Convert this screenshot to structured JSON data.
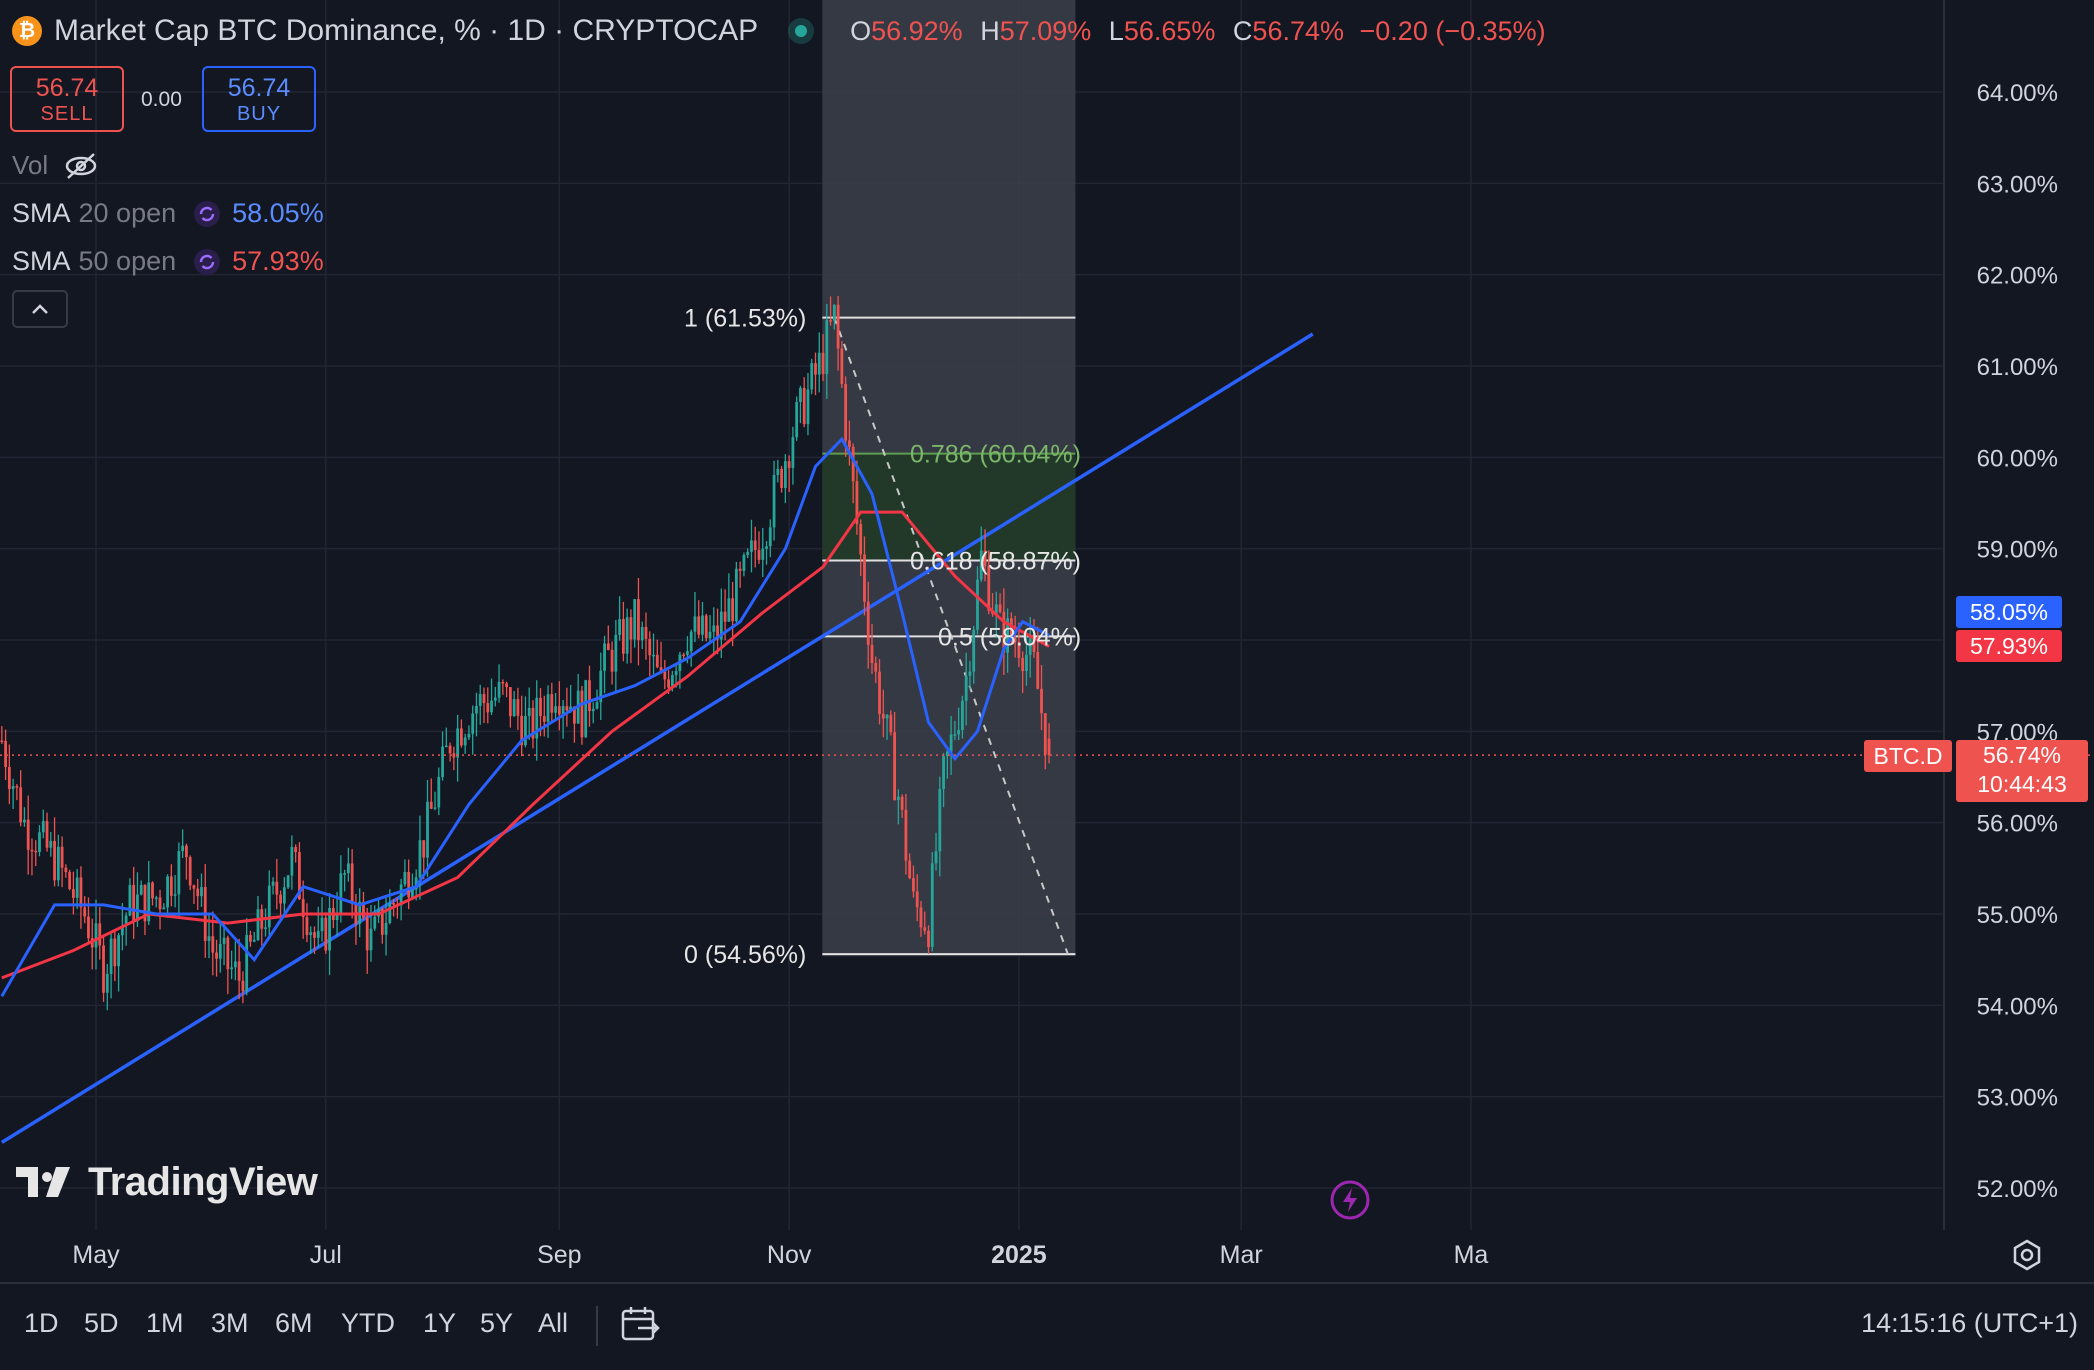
{
  "header": {
    "symbol_icon": "bitcoin-icon",
    "title": "Market Cap BTC Dominance, % · 1D · CRYPTOCAP",
    "status_icon": "market-status-dot-icon",
    "o_label": "O",
    "o_value": "56.92%",
    "h_label": "H",
    "h_value": "57.09%",
    "l_label": "L",
    "l_value": "56.65%",
    "c_label": "C",
    "c_value": "56.74%",
    "change": "−0.20 (−0.35%)"
  },
  "trade": {
    "sell_price": "56.74",
    "sell_label": "SELL",
    "spread": "0.00",
    "buy_price": "56.74",
    "buy_label": "BUY"
  },
  "indicators": {
    "vol_label": "Vol",
    "vol_icon": "eye-off-icon",
    "sma20_name": "SMA",
    "sma20_params": "20 open",
    "sma20_value": "58.05%",
    "sma50_name": "SMA",
    "sma50_params": "50 open",
    "sma50_value": "57.93%",
    "collapse_icon": "chevron-up-icon"
  },
  "price_axis": {
    "ticks": [
      "64.00%",
      "63.00%",
      "62.00%",
      "61.00%",
      "60.00%",
      "59.00%",
      "57.00%",
      "56.00%",
      "55.00%",
      "54.00%",
      "53.00%",
      "52.00%"
    ],
    "badge_sma20": "58.05%",
    "badge_sma50": "57.93%",
    "badge_symbol": "BTC.D",
    "badge_price": "56.74%",
    "badge_countdown": "10:44:43"
  },
  "time_axis": {
    "labels": [
      "May",
      "Jul",
      "Sep",
      "Nov",
      "2025",
      "Mar",
      "Ma"
    ],
    "settings_icon": "gear-icon"
  },
  "fib": {
    "levels": [
      "1 (61.53%)",
      "0.786 (60.04%)",
      "0.618 (58.87%)",
      "0.5 (58.04%)",
      "0 (54.56%)"
    ]
  },
  "branding": {
    "logo_text": "TradingView",
    "lightning_icon": "lightning-icon"
  },
  "toolbar": {
    "ranges": [
      "1D",
      "5D",
      "1M",
      "3M",
      "6M",
      "YTD",
      "1Y",
      "5Y",
      "All"
    ],
    "compare_icon": "calendar-range-icon",
    "clock": "14:15:16 (UTC+1)"
  },
  "colors": {
    "background": "#131722",
    "up": "#26a69a",
    "down": "#ef5350",
    "sma20": "#2962ff",
    "sma50": "#f23645",
    "trendline": "#2962ff",
    "fib_zone": "#3c3f4a",
    "fib_green": "#1e3a26"
  },
  "chart_data": {
    "type": "candlestick",
    "title": "Market Cap BTC Dominance, % · 1D · CRYPTOCAP",
    "ylabel": "",
    "y_scale": "percent",
    "ylim": [
      51.6,
      64.4
    ],
    "x_range": [
      "2024-04-06",
      "2025-05-05"
    ],
    "last_close": 56.74,
    "ohlc_last": {
      "open": 56.92,
      "high": 57.09,
      "low": 56.65,
      "close": 56.74
    },
    "series": [
      {
        "name": "BTC.D",
        "type": "close",
        "points": [
          [
            "2024-04-06",
            56.9
          ],
          [
            "2024-04-12",
            56.0
          ],
          [
            "2024-04-20",
            55.6
          ],
          [
            "2024-04-28",
            55.0
          ],
          [
            "2024-05-03",
            54.4
          ],
          [
            "2024-05-10",
            55.1
          ],
          [
            "2024-05-18",
            55.2
          ],
          [
            "2024-05-25",
            55.7
          ],
          [
            "2024-06-01",
            54.6
          ],
          [
            "2024-06-08",
            54.3
          ],
          [
            "2024-06-15",
            55.0
          ],
          [
            "2024-06-22",
            55.6
          ],
          [
            "2024-06-29",
            54.6
          ],
          [
            "2024-07-06",
            55.4
          ],
          [
            "2024-07-13",
            54.7
          ],
          [
            "2024-07-20",
            55.2
          ],
          [
            "2024-07-27",
            55.8
          ],
          [
            "2024-08-03",
            56.9
          ],
          [
            "2024-08-10",
            57.3
          ],
          [
            "2024-08-17",
            57.4
          ],
          [
            "2024-08-24",
            57.0
          ],
          [
            "2024-08-31",
            57.5
          ],
          [
            "2024-09-07",
            57.2
          ],
          [
            "2024-09-14",
            57.8
          ],
          [
            "2024-09-21",
            58.2
          ],
          [
            "2024-09-28",
            57.5
          ],
          [
            "2024-10-05",
            58.1
          ],
          [
            "2024-10-12",
            58.0
          ],
          [
            "2024-10-19",
            58.6
          ],
          [
            "2024-10-26",
            59.3
          ],
          [
            "2024-11-02",
            60.3
          ],
          [
            "2024-11-09",
            61.0
          ],
          [
            "2024-11-13",
            61.53
          ],
          [
            "2024-11-17",
            60.0
          ],
          [
            "2024-11-23",
            57.8
          ],
          [
            "2024-11-30",
            56.3
          ],
          [
            "2024-12-04",
            55.1
          ],
          [
            "2024-12-08",
            54.9
          ],
          [
            "2024-12-12",
            56.5
          ],
          [
            "2024-12-18",
            57.6
          ],
          [
            "2024-12-22",
            58.9
          ],
          [
            "2024-12-27",
            58.1
          ],
          [
            "2025-01-01",
            58.0
          ],
          [
            "2025-01-05",
            57.7
          ],
          [
            "2025-01-09",
            56.74
          ]
        ]
      },
      {
        "name": "SMA 20 open",
        "type": "line",
        "points": [
          [
            "2024-04-06",
            54.1
          ],
          [
            "2024-04-20",
            55.1
          ],
          [
            "2024-05-03",
            55.1
          ],
          [
            "2024-05-17",
            55.0
          ],
          [
            "2024-06-01",
            55.0
          ],
          [
            "2024-06-12",
            54.5
          ],
          [
            "2024-06-25",
            55.3
          ],
          [
            "2024-07-10",
            55.1
          ],
          [
            "2024-07-25",
            55.3
          ],
          [
            "2024-08-08",
            56.2
          ],
          [
            "2024-08-22",
            56.9
          ],
          [
            "2024-09-07",
            57.3
          ],
          [
            "2024-09-21",
            57.5
          ],
          [
            "2024-10-05",
            57.8
          ],
          [
            "2024-10-19",
            58.2
          ],
          [
            "2024-10-31",
            59.0
          ],
          [
            "2024-11-08",
            59.9
          ],
          [
            "2024-11-15",
            60.2
          ],
          [
            "2024-11-23",
            59.6
          ],
          [
            "2024-12-01",
            58.3
          ],
          [
            "2024-12-08",
            57.1
          ],
          [
            "2024-12-15",
            56.7
          ],
          [
            "2024-12-21",
            57.0
          ],
          [
            "2024-12-28",
            57.9
          ],
          [
            "2025-01-02",
            58.2
          ],
          [
            "2025-01-09",
            58.05
          ]
        ]
      },
      {
        "name": "SMA 50 open",
        "type": "line",
        "points": [
          [
            "2024-04-06",
            54.3
          ],
          [
            "2024-04-25",
            54.6
          ],
          [
            "2024-05-15",
            55.0
          ],
          [
            "2024-06-05",
            54.9
          ],
          [
            "2024-06-25",
            55.0
          ],
          [
            "2024-07-15",
            55.0
          ],
          [
            "2024-08-05",
            55.4
          ],
          [
            "2024-08-25",
            56.2
          ],
          [
            "2024-09-15",
            57.0
          ],
          [
            "2024-10-05",
            57.6
          ],
          [
            "2024-10-25",
            58.3
          ],
          [
            "2024-11-10",
            58.8
          ],
          [
            "2024-11-20",
            59.4
          ],
          [
            "2024-12-01",
            59.4
          ],
          [
            "2024-12-15",
            58.7
          ],
          [
            "2024-12-28",
            58.2
          ],
          [
            "2025-01-09",
            57.93
          ]
        ]
      }
    ],
    "fibonacci": {
      "from": [
        "2024-11-13",
        61.53
      ],
      "to": [
        "2024-12-06",
        54.56
      ],
      "levels": [
        {
          "ratio": 1,
          "value": 61.53
        },
        {
          "ratio": 0.786,
          "value": 60.04
        },
        {
          "ratio": 0.618,
          "value": 58.87
        },
        {
          "ratio": 0.5,
          "value": 58.04
        },
        {
          "ratio": 0,
          "value": 54.56
        }
      ]
    },
    "trendline": {
      "from": [
        "2024-04-06",
        52.5
      ],
      "to": [
        "2025-03-20",
        61.35
      ]
    },
    "grid": true
  }
}
